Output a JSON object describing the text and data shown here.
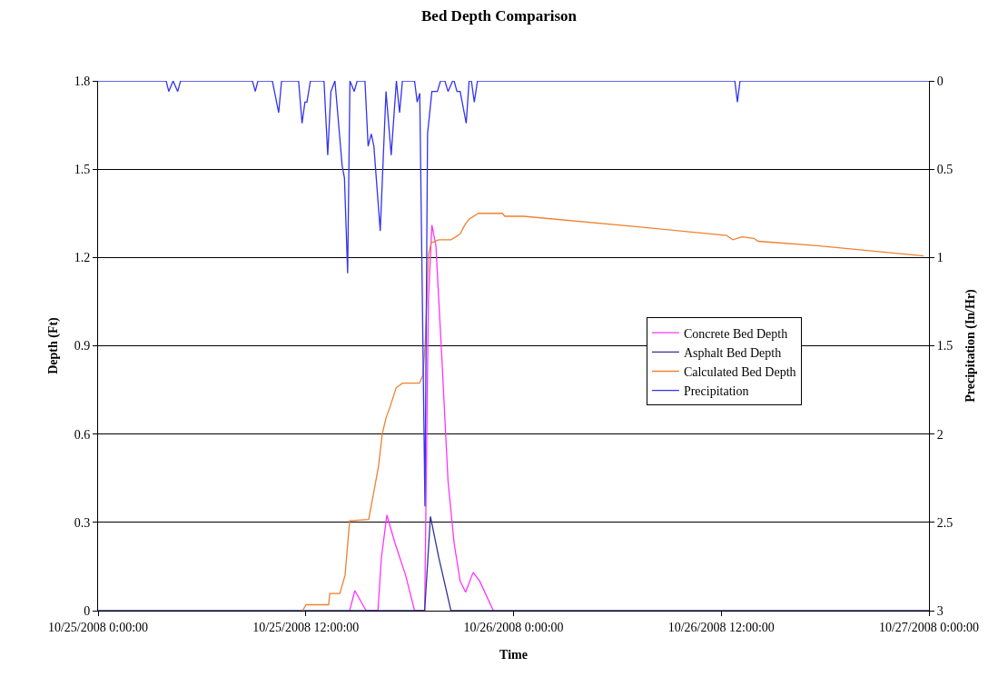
{
  "chart_data": {
    "type": "line",
    "title": "Bed Depth Comparison",
    "xlabel": "Time",
    "ylabel": "Depth (Ft)",
    "y2label": "Precipitation (In/Hr)",
    "xlim": [
      "2008-10-25T00:00",
      "2008-10-27T00:00"
    ],
    "xticks": [
      {
        "value": "2008-10-25T00:00",
        "label": "10/25/2008 0:00:00"
      },
      {
        "value": "2008-10-25T12:00",
        "label": "10/25/2008 12:00:00"
      },
      {
        "value": "2008-10-26T00:00",
        "label": "10/26/2008 0:00:00"
      },
      {
        "value": "2008-10-26T12:00",
        "label": "10/26/2008 12:00:00"
      },
      {
        "value": "2008-10-27T00:00",
        "label": "10/27/2008 0:00:00"
      }
    ],
    "ylim": [
      0,
      1.8
    ],
    "yticks": [
      0,
      0.3,
      0.6,
      0.9,
      1.2,
      1.5,
      1.8
    ],
    "y2lim": [
      3,
      0
    ],
    "y2ticks": [
      0,
      0.5,
      1,
      1.5,
      2,
      2.5,
      3
    ],
    "grid": "y",
    "legend": "right",
    "marker": "none",
    "line_style": "solid",
    "series": [
      {
        "name": "Concrete Bed Depth",
        "color": "#ff33ff",
        "x": [
          "2008-10-25T14:32",
          "2008-10-25T14:50",
          "2008-10-25T15:29",
          "2008-10-25T16:10",
          "2008-10-25T16:22",
          "2008-10-25T16:41",
          "2008-10-25T17:09",
          "2008-10-25T17:46",
          "2008-10-25T18:17",
          "2008-10-25T18:52",
          "2008-10-25T19:05",
          "2008-10-25T19:17",
          "2008-10-25T19:31",
          "2008-10-25T19:52",
          "2008-10-25T20:13",
          "2008-10-25T20:34",
          "2008-10-25T20:55",
          "2008-10-25T21:14",
          "2008-10-25T21:40",
          "2008-10-25T22:03",
          "2008-10-25T22:50"
        ],
        "values": [
          0,
          0.068,
          0,
          0,
          0.18,
          0.325,
          0.23,
          0.12,
          0,
          0,
          1.056,
          1.31,
          1.24,
          0.85,
          0.44,
          0.23,
          0.1,
          0.063,
          0.13,
          0.1,
          0
        ]
      },
      {
        "name": "Asphalt Bed Depth",
        "color": "#333399",
        "x": [
          "2008-10-25T00:00",
          "2008-10-25T18:52",
          "2008-10-25T19:12",
          "2008-10-25T19:41",
          "2008-10-25T20:23",
          "2008-10-27T00:00"
        ],
        "values": [
          0,
          0,
          0.32,
          0.18,
          0,
          0
        ]
      },
      {
        "name": "Calculated Bed Depth",
        "color": "#f08030",
        "x": [
          "2008-10-25T11:49",
          "2008-10-25T12:01",
          "2008-10-25T13:19",
          "2008-10-25T13:23",
          "2008-10-25T13:58",
          "2008-10-25T14:16",
          "2008-10-25T14:32",
          "2008-10-25T15:38",
          "2008-10-25T16:12",
          "2008-10-25T16:25",
          "2008-10-25T16:38",
          "2008-10-25T16:53",
          "2008-10-25T17:13",
          "2008-10-25T17:35",
          "2008-10-25T18:34",
          "2008-10-25T18:46",
          "2008-10-25T18:54",
          "2008-10-25T19:05",
          "2008-10-25T19:15",
          "2008-10-25T19:41",
          "2008-10-25T20:23",
          "2008-10-25T20:40",
          "2008-10-25T20:55",
          "2008-10-25T21:11",
          "2008-10-25T21:26",
          "2008-10-25T21:58",
          "2008-10-25T23:21",
          "2008-10-25T23:30",
          "2008-10-26T00:35",
          "2008-10-26T07:04",
          "2008-10-26T12:18",
          "2008-10-26T12:40",
          "2008-10-26T13:12",
          "2008-10-26T13:53",
          "2008-10-26T14:08",
          "2008-10-26T17:33",
          "2008-10-26T23:41"
        ],
        "values": [
          0,
          0.02,
          0.02,
          0.058,
          0.058,
          0.12,
          0.305,
          0.31,
          0.49,
          0.6,
          0.655,
          0.695,
          0.757,
          0.773,
          0.773,
          0.8,
          0.91,
          1.21,
          1.25,
          1.26,
          1.26,
          1.27,
          1.28,
          1.31,
          1.33,
          1.35,
          1.35,
          1.34,
          1.34,
          1.305,
          1.275,
          1.26,
          1.27,
          1.265,
          1.255,
          1.24,
          1.205
        ]
      },
      {
        "name": "Precipitation",
        "color": "#3333ee",
        "axis": "y2",
        "x": [
          "2008-10-25T00:00",
          "2008-10-25T03:56",
          "2008-10-25T04:05",
          "2008-10-25T04:20",
          "2008-10-25T04:36",
          "2008-10-25T04:46",
          "2008-10-25T08:55",
          "2008-10-25T09:05",
          "2008-10-25T09:14",
          "2008-10-25T10:04",
          "2008-10-25T10:26",
          "2008-10-25T10:36",
          "2008-10-25T11:35",
          "2008-10-25T11:47",
          "2008-10-25T11:57",
          "2008-10-25T12:04",
          "2008-10-25T12:16",
          "2008-10-25T13:03",
          "2008-10-25T13:16",
          "2008-10-25T13:27",
          "2008-10-25T13:41",
          "2008-10-25T14:06",
          "2008-10-25T14:14",
          "2008-10-25T14:25",
          "2008-10-25T14:33",
          "2008-10-25T14:48",
          "2008-10-25T14:58",
          "2008-10-25T15:25",
          "2008-10-25T15:36",
          "2008-10-25T15:47",
          "2008-10-25T15:56",
          "2008-10-25T16:18",
          "2008-10-25T16:38",
          "2008-10-25T16:56",
          "2008-10-25T17:14",
          "2008-10-25T17:25",
          "2008-10-25T17:35",
          "2008-10-25T18:17",
          "2008-10-25T18:26",
          "2008-10-25T18:35",
          "2008-10-25T18:53",
          "2008-10-25T19:02",
          "2008-10-25T19:17",
          "2008-10-25T19:36",
          "2008-10-25T19:47",
          "2008-10-25T20:02",
          "2008-10-25T20:13",
          "2008-10-25T20:29",
          "2008-10-25T20:34",
          "2008-10-25T20:44",
          "2008-10-25T20:55",
          "2008-10-25T21:16",
          "2008-10-25T21:26",
          "2008-10-25T21:34",
          "2008-10-25T21:44",
          "2008-10-25T21:55",
          "2008-10-26T12:47",
          "2008-10-26T12:56",
          "2008-10-26T13:05",
          "2008-10-27T00:00"
        ],
        "values": [
          0,
          0,
          0.06,
          0,
          0.06,
          0,
          0,
          0.06,
          0,
          0,
          0.18,
          0,
          0,
          0.24,
          0.12,
          0.12,
          0,
          0,
          0.42,
          0.06,
          0,
          0.48,
          0.55,
          1.09,
          0,
          0.06,
          0,
          0,
          0.37,
          0.3,
          0.37,
          0.85,
          0.06,
          0.42,
          0,
          0.18,
          0,
          0,
          0.12,
          0.07,
          2.41,
          0.3,
          0.06,
          0.06,
          0,
          0,
          0.06,
          0,
          0,
          0.06,
          0.06,
          0.24,
          0,
          0,
          0.12,
          0,
          0,
          0.12,
          0,
          0
        ]
      }
    ]
  }
}
